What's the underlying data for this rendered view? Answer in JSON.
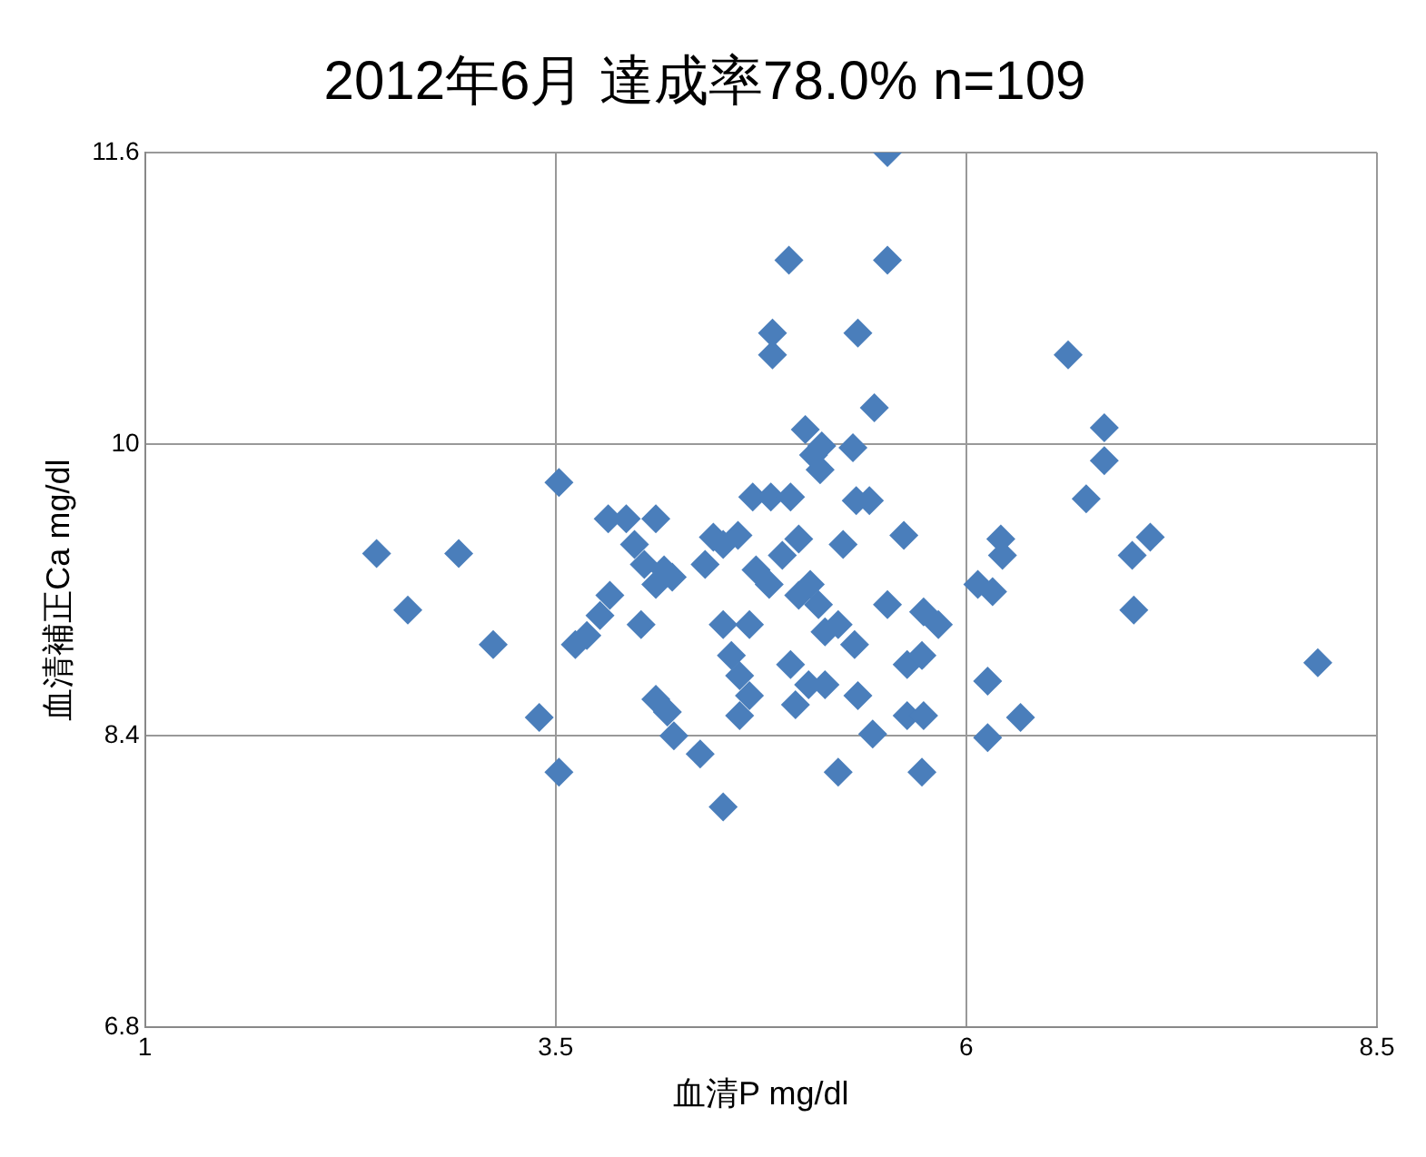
{
  "chart_data": {
    "type": "scatter",
    "title": "2012年6月 達成率78.0% n=109",
    "xlabel": "血清P mg/dl",
    "ylabel": "血清補正Ca mg/dl",
    "xlim": [
      1,
      8.5
    ],
    "xticks": [
      1,
      3.5,
      6,
      8.5
    ],
    "ylim": [
      6.8,
      11.6
    ],
    "yticks": [
      6.8,
      8.4,
      10,
      11.6
    ],
    "grid": true,
    "legend": false,
    "marker": "diamond",
    "series": [
      {
        "color": "#4a7ebb",
        "x": [
          2.41,
          2.6,
          2.91,
          3.12,
          3.4,
          3.52,
          3.52,
          3.62,
          3.69,
          3.77,
          3.83,
          3.82,
          3.93,
          3.98,
          4.02,
          4.04,
          4.11,
          4.11,
          4.16,
          4.21,
          4.11,
          4.18,
          4.22,
          4.41,
          4.46,
          4.52,
          4.61,
          4.52,
          4.38,
          4.52,
          4.57,
          4.62,
          4.62,
          4.68,
          4.72,
          4.7,
          4.81,
          4.93,
          4.82,
          4.82,
          4.92,
          5.02,
          5.07,
          5.11,
          5.12,
          4.88,
          4.98,
          5.05,
          5.1,
          5.14,
          4.93,
          4.96,
          5.04,
          5.14,
          5.25,
          5.33,
          5.31,
          5.34,
          5.44,
          5.52,
          5.52,
          5.41,
          5.52,
          5.62,
          5.32,
          5.34,
          5.43,
          5.22,
          5.64,
          5.64,
          5.74,
          5.73,
          5.74,
          5.73,
          5.83,
          6.07,
          6.21,
          6.22,
          6.16,
          6.13,
          6.13,
          6.33,
          6.62,
          6.84,
          6.84,
          6.73,
          7.01,
          7.12,
          7.02,
          8.14,
          4.68,
          4.8,
          5.22,
          4.98
        ],
        "values": [
          9.4,
          9.09,
          9.4,
          8.9,
          8.5,
          8.2,
          9.79,
          8.9,
          8.95,
          9.06,
          9.17,
          9.59,
          9.59,
          9.45,
          9.01,
          9.34,
          9.59,
          9.23,
          9.31,
          9.27,
          8.6,
          8.53,
          8.4,
          9.34,
          9.49,
          9.45,
          9.5,
          8.01,
          8.3,
          9.01,
          8.84,
          8.73,
          8.51,
          8.62,
          9.31,
          9.71,
          9.71,
          9.71,
          10.61,
          10.49,
          11.01,
          10.08,
          9.94,
          9.86,
          9.99,
          9.39,
          9.48,
          9.23,
          9.12,
          8.97,
          8.79,
          8.57,
          8.68,
          8.68,
          9.45,
          9.69,
          9.98,
          10.61,
          10.2,
          11.6,
          11.01,
          9.69,
          9.12,
          9.5,
          8.9,
          8.62,
          8.41,
          8.2,
          8.79,
          8.51,
          9.08,
          8.84,
          8.51,
          8.2,
          9.01,
          9.23,
          9.48,
          9.39,
          9.19,
          8.7,
          8.39,
          8.5,
          10.49,
          10.09,
          9.91,
          9.7,
          9.39,
          9.49,
          9.09,
          8.8,
          9.01,
          9.23,
          9.01,
          9.17
        ]
      }
    ]
  }
}
